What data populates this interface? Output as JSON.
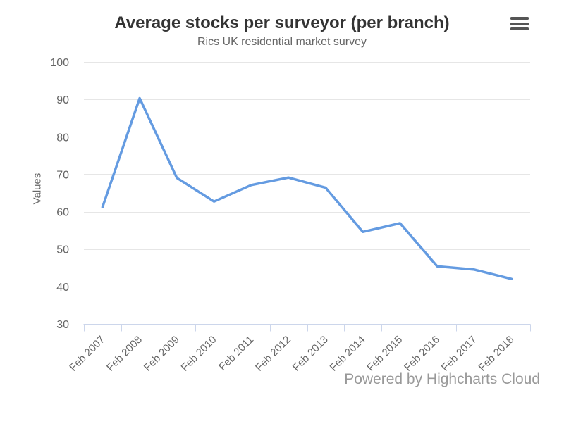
{
  "header": {
    "title": "Average stocks per surveyor (per branch)",
    "subtitle": "Rics UK residential market survey"
  },
  "menu": {
    "icon": "hamburger-icon"
  },
  "credits": {
    "text": "Powered by Highcharts Cloud"
  },
  "colors": {
    "series_line": "#649be1",
    "grid_line": "#e6e6e6",
    "axis_line": "#ccd6eb",
    "title_text": "#333333",
    "subtitle_text": "#666666",
    "axis_label_text": "#666666",
    "credits_text": "#999999",
    "menu_icon": "#555555"
  },
  "chart_data": {
    "type": "line",
    "title": "Average stocks per surveyor (per branch)",
    "subtitle": "Rics UK residential market survey",
    "xlabel": "",
    "ylabel": "Values",
    "categories": [
      "Feb 2007",
      "Feb 2008",
      "Feb 2009",
      "Feb 2010",
      "Feb 2011",
      "Feb 2012",
      "Feb 2013",
      "Feb 2014",
      "Feb 2015",
      "Feb 2016",
      "Feb 2017",
      "Feb 2018"
    ],
    "series": [
      {
        "name": "Values",
        "values": [
          61.2,
          90.3,
          69.0,
          62.7,
          67.1,
          69.1,
          66.4,
          54.6,
          56.9,
          45.4,
          44.5,
          42.0
        ]
      }
    ],
    "ylim": [
      30,
      100
    ],
    "ytick_step": 10,
    "grid": true,
    "legend": false,
    "markers": false
  }
}
